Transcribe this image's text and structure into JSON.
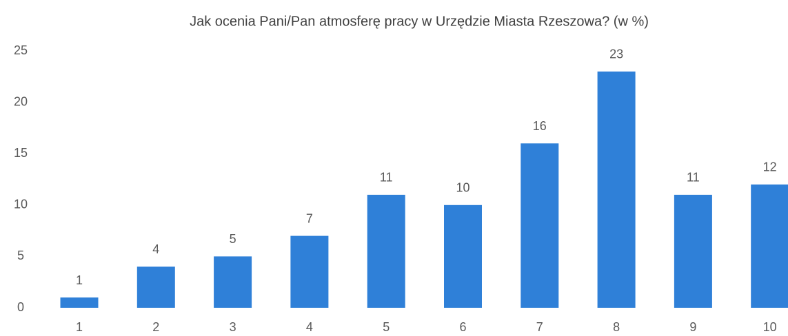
{
  "chart_data": {
    "type": "bar",
    "title": "Jak ocenia Pani/Pan atmosferę pracy w Urzędzie Miasta Rzeszowa? (w %)",
    "categories": [
      "1",
      "2",
      "3",
      "4",
      "5",
      "6",
      "7",
      "8",
      "9",
      "10"
    ],
    "values": [
      1,
      4,
      5,
      7,
      11,
      10,
      16,
      23,
      11,
      12
    ],
    "color": "#2f80d8",
    "ylim": [
      0,
      25
    ],
    "yticks": [
      0,
      5,
      10,
      15,
      20,
      25
    ],
    "grid": false,
    "data_labels": true
  }
}
